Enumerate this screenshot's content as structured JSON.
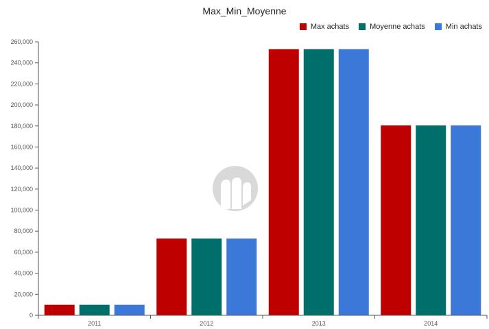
{
  "chart_data": {
    "type": "bar",
    "title": "Max_Min_Moyenne",
    "categories": [
      "2011",
      "2012",
      "2013",
      "2014"
    ],
    "series": [
      {
        "name": "Max achats",
        "color": "#bf0000",
        "values": [
          10000,
          73000,
          253000,
          180500
        ]
      },
      {
        "name": "Moyenne achats",
        "color": "#006f6b",
        "values": [
          10000,
          73000,
          253000,
          180500
        ]
      },
      {
        "name": "Min achats",
        "color": "#3c78d8",
        "values": [
          10000,
          73000,
          253000,
          180500
        ]
      }
    ],
    "ylim": [
      0,
      260000
    ],
    "yticks": [
      "0",
      "20,000",
      "40,000",
      "60,000",
      "80,000",
      "100,000",
      "120,000",
      "140,000",
      "160,000",
      "180,000",
      "200,000",
      "220,000",
      "240,000",
      "260,000"
    ],
    "legend_position": "top-right",
    "grid": false
  },
  "watermark": {
    "icon": "logo-watermark-icon",
    "color": "#d9d9d9"
  }
}
